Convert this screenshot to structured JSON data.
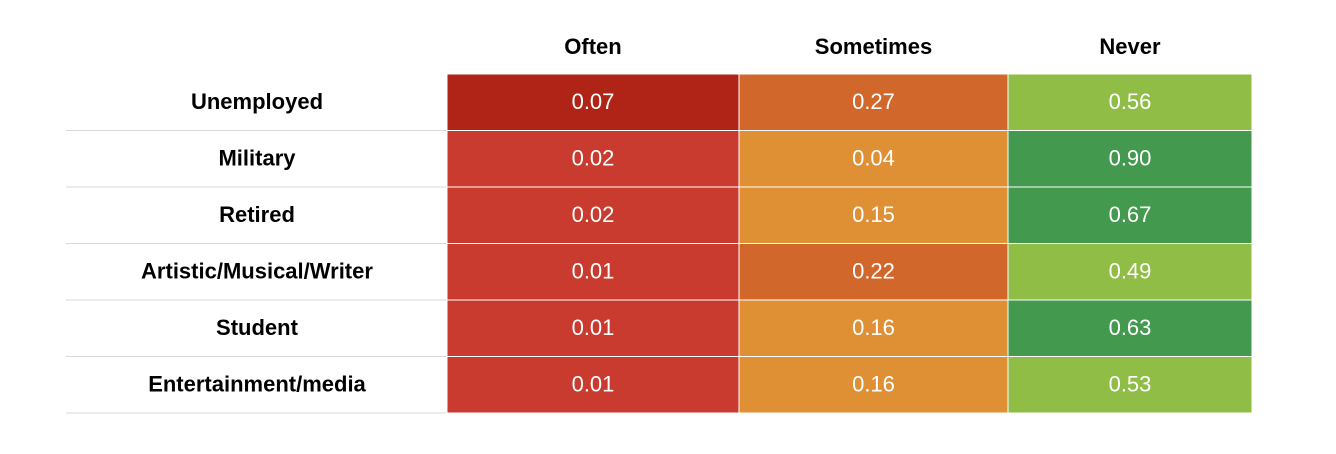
{
  "chart_data": {
    "type": "heatmap",
    "columns": [
      "Often",
      "Sometimes",
      "Never"
    ],
    "rows": [
      "Unemployed",
      "Military",
      "Retired",
      "Artistic/Musical/Writer",
      "Student",
      "Entertainment/media"
    ],
    "values": [
      [
        "0.07",
        "0.27",
        "0.56"
      ],
      [
        "0.02",
        "0.04",
        "0.90"
      ],
      [
        "0.02",
        "0.15",
        "0.67"
      ],
      [
        "0.01",
        "0.22",
        "0.49"
      ],
      [
        "0.01",
        "0.16",
        "0.63"
      ],
      [
        "0.01",
        "0.16",
        "0.53"
      ]
    ],
    "cell_colors": [
      [
        "#b02418",
        "#d2672c",
        "#8fbd46"
      ],
      [
        "#c93b2f",
        "#df9035",
        "#43994e"
      ],
      [
        "#c93b2f",
        "#df9035",
        "#43994e"
      ],
      [
        "#c93b2f",
        "#d2672c",
        "#8fbd46"
      ],
      [
        "#c93b2f",
        "#df9035",
        "#43994e"
      ],
      [
        "#c93b2f",
        "#df9035",
        "#8fbd46"
      ]
    ],
    "grid": true
  }
}
